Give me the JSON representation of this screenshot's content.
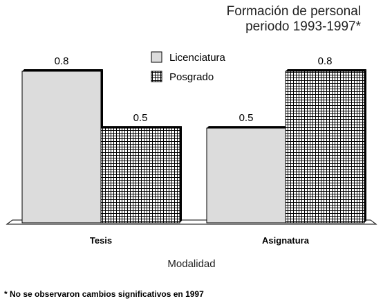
{
  "chart_data": {
    "type": "bar",
    "title_lines": [
      "Formación de personal",
      "periodo 1993-1997*"
    ],
    "categories": [
      "Tesis",
      "Asignatura"
    ],
    "series": [
      {
        "name": "Licenciatura",
        "values": [
          0.8,
          0.5
        ],
        "fill": "#dcdcdc",
        "pattern": "solid"
      },
      {
        "name": "Posgrado",
        "values": [
          0.5,
          0.8
        ],
        "fill": "#ffffff",
        "pattern": "grid"
      }
    ],
    "value_labels": [
      [
        "0.8",
        "0.5"
      ],
      [
        "0.5",
        "0.8"
      ]
    ],
    "xlabel": "Modalidad",
    "ylabel": "",
    "ylim": [
      0,
      0.8
    ],
    "grid": false,
    "legend_position": "top-center",
    "footnote": "* No se observaron cambios significativos en 1997"
  }
}
